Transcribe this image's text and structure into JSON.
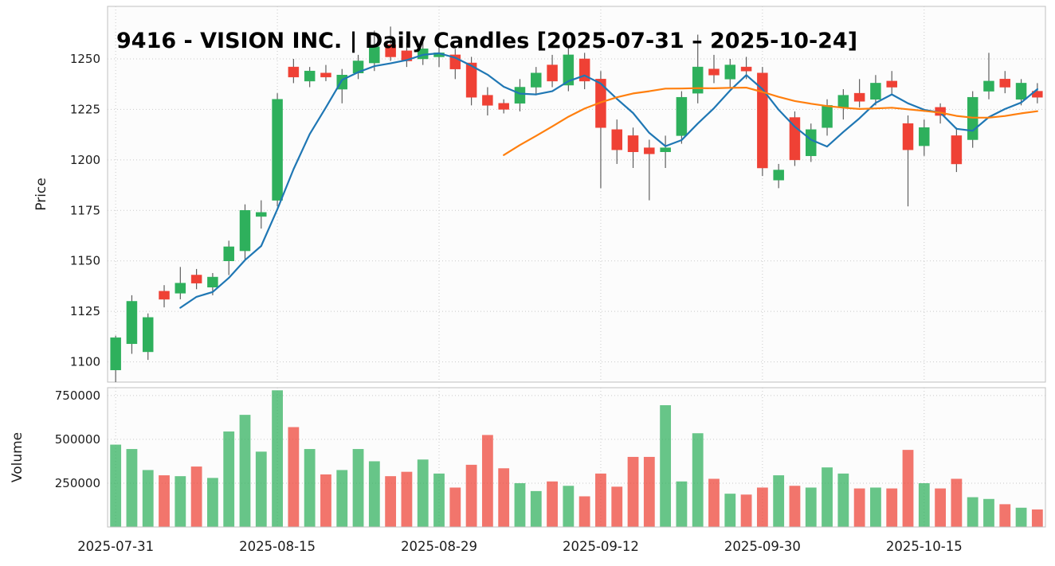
{
  "title": "9416 - VISION INC. | Daily Candles [2025-07-31 – 2025-10-24]",
  "axes": {
    "price_label": "Price",
    "volume_label": "Volume",
    "price_ticks": [
      1100,
      1125,
      1150,
      1175,
      1200,
      1225,
      1250
    ],
    "volume_ticks": [
      250000,
      500000,
      750000
    ],
    "x_ticks": [
      "2025-07-31",
      "2025-08-15",
      "2025-08-29",
      "2025-09-12",
      "2025-09-30",
      "2025-10-15"
    ]
  },
  "style": {
    "up_color": "#2eb05c",
    "down_color": "#ef4135",
    "wick_color": "#5f5f5f",
    "grid_color": "#c9c9c9",
    "panel_border": "#c0c0c0",
    "panel_fill": "#fcfcfc",
    "ma_fast_color": "#1f77b4",
    "ma_slow_color": "#ff7f0e",
    "volume_opacity": 0.72
  },
  "chart_data": {
    "type": "candlestick+volume",
    "title": "9416 - VISION INC. | Daily Candles [2025-07-31 – 2025-10-24]",
    "ylabel_price": "Price",
    "ylabel_volume": "Volume",
    "price_ylim": [
      1090,
      1276
    ],
    "volume_ylim": [
      0,
      795000
    ],
    "grid": "dotted",
    "overlays": [
      {
        "name": "MA5",
        "window": 5,
        "color": "#1f77b4"
      },
      {
        "name": "MA25",
        "window": 25,
        "color": "#ff7f0e"
      }
    ],
    "columns": [
      "date",
      "open",
      "high",
      "low",
      "close",
      "volume"
    ],
    "ohlc": [
      [
        "2025-07-31",
        1096,
        1113,
        1090,
        1112,
        470000
      ],
      [
        "2025-08-01",
        1109,
        1133,
        1104,
        1130,
        445000
      ],
      [
        "2025-08-04",
        1105,
        1124,
        1101,
        1122,
        325000
      ],
      [
        "2025-08-05",
        1135,
        1138,
        1127,
        1131,
        295000
      ],
      [
        "2025-08-06",
        1134,
        1147,
        1131,
        1139,
        290000
      ],
      [
        "2025-08-07",
        1143,
        1146,
        1136,
        1139,
        345000
      ],
      [
        "2025-08-08",
        1137,
        1144,
        1133,
        1142,
        280000
      ],
      [
        "2025-08-12",
        1150,
        1160,
        1143,
        1157,
        545000
      ],
      [
        "2025-08-13",
        1155,
        1178,
        1150,
        1175,
        640000
      ],
      [
        "2025-08-14",
        1172,
        1180,
        1166,
        1174,
        430000
      ],
      [
        "2025-08-15",
        1180,
        1233,
        1177,
        1230,
        780000
      ],
      [
        "2025-08-18",
        1246,
        1250,
        1238,
        1241,
        570000
      ],
      [
        "2025-08-19",
        1239,
        1246,
        1236,
        1244,
        445000
      ],
      [
        "2025-08-20",
        1243,
        1247,
        1239,
        1241,
        300000
      ],
      [
        "2025-08-21",
        1235,
        1245,
        1228,
        1242,
        325000
      ],
      [
        "2025-08-22",
        1243,
        1252,
        1240,
        1249,
        445000
      ],
      [
        "2025-08-25",
        1248,
        1264,
        1244,
        1256,
        375000
      ],
      [
        "2025-08-26",
        1257,
        1266,
        1249,
        1251,
        290000
      ],
      [
        "2025-08-27",
        1254,
        1258,
        1246,
        1249,
        315000
      ],
      [
        "2025-08-28",
        1250,
        1259,
        1247,
        1255,
        385000
      ],
      [
        "2025-08-29",
        1251,
        1257,
        1246,
        1253,
        305000
      ],
      [
        "2025-09-01",
        1252,
        1255,
        1240,
        1245,
        225000
      ],
      [
        "2025-09-02",
        1248,
        1251,
        1227,
        1231,
        355000
      ],
      [
        "2025-09-03",
        1232,
        1236,
        1222,
        1227,
        525000
      ],
      [
        "2025-09-04",
        1228,
        1230,
        1223,
        1225,
        335000
      ],
      [
        "2025-09-05",
        1228,
        1240,
        1224,
        1236,
        250000
      ],
      [
        "2025-09-08",
        1236,
        1246,
        1232,
        1243,
        205000
      ],
      [
        "2025-09-09",
        1247,
        1252,
        1236,
        1239,
        260000
      ],
      [
        "2025-09-10",
        1237,
        1256,
        1234,
        1252,
        235000
      ],
      [
        "2025-09-11",
        1250,
        1253,
        1235,
        1239,
        175000
      ],
      [
        "2025-09-12",
        1240,
        1244,
        1186,
        1216,
        305000
      ],
      [
        "2025-09-16",
        1215,
        1220,
        1198,
        1205,
        230000
      ],
      [
        "2025-09-17",
        1212,
        1216,
        1196,
        1204,
        400000
      ],
      [
        "2025-09-18",
        1206,
        1210,
        1180,
        1203,
        400000
      ],
      [
        "2025-09-19",
        1204,
        1212,
        1196,
        1206,
        695000
      ],
      [
        "2025-09-22",
        1212,
        1234,
        1208,
        1231,
        260000
      ],
      [
        "2025-09-24",
        1233,
        1262,
        1228,
        1246,
        535000
      ],
      [
        "2025-09-25",
        1245,
        1252,
        1238,
        1242,
        275000
      ],
      [
        "2025-09-26",
        1240,
        1250,
        1236,
        1247,
        190000
      ],
      [
        "2025-09-29",
        1246,
        1251,
        1240,
        1244,
        185000
      ],
      [
        "2025-09-30",
        1243,
        1246,
        1192,
        1196,
        225000
      ],
      [
        "2025-10-01",
        1190,
        1198,
        1186,
        1195,
        295000
      ],
      [
        "2025-10-02",
        1221,
        1224,
        1197,
        1200,
        235000
      ],
      [
        "2025-10-03",
        1202,
        1218,
        1199,
        1215,
        225000
      ],
      [
        "2025-10-06",
        1216,
        1230,
        1212,
        1227,
        340000
      ],
      [
        "2025-10-07",
        1226,
        1235,
        1220,
        1232,
        305000
      ],
      [
        "2025-10-08",
        1233,
        1240,
        1226,
        1229,
        220000
      ],
      [
        "2025-10-09",
        1230,
        1242,
        1227,
        1238,
        225000
      ],
      [
        "2025-10-10",
        1239,
        1244,
        1232,
        1236,
        220000
      ],
      [
        "2025-10-14",
        1218,
        1222,
        1177,
        1205,
        440000
      ],
      [
        "2025-10-15",
        1207,
        1220,
        1202,
        1216,
        250000
      ],
      [
        "2025-10-16",
        1226,
        1228,
        1218,
        1222,
        220000
      ],
      [
        "2025-10-17",
        1212,
        1216,
        1194,
        1198,
        275000
      ],
      [
        "2025-10-20",
        1210,
        1234,
        1206,
        1231,
        170000
      ],
      [
        "2025-10-21",
        1234,
        1253,
        1230,
        1239,
        160000
      ],
      [
        "2025-10-22",
        1240,
        1244,
        1233,
        1236,
        130000
      ],
      [
        "2025-10-23",
        1230,
        1240,
        1227,
        1238,
        110000
      ],
      [
        "2025-10-24",
        1234,
        1238,
        1228,
        1231,
        100000
      ]
    ]
  }
}
